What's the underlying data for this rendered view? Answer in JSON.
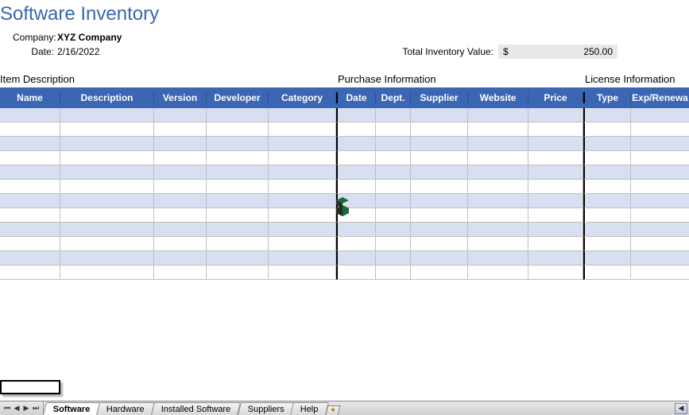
{
  "title": "Software Inventory",
  "meta": {
    "company_label": "Company:",
    "company_value": "XYZ Company",
    "date_label": "Date:",
    "date_value": "2/16/2022"
  },
  "inventory_total": {
    "label": "Total Inventory Value:",
    "currency": "$",
    "amount": "250.00"
  },
  "sections": {
    "item_description": "Item Description",
    "purchase_info": "Purchase Information",
    "license_info": "License Information"
  },
  "columns": {
    "name": "Name",
    "description": "Description",
    "version": "Version",
    "developer": "Developer",
    "category": "Category",
    "date": "Date",
    "dept": "Dept.",
    "supplier": "Supplier",
    "website": "Website",
    "price": "Price",
    "type": "Type",
    "exp": "Exp/Renewa"
  },
  "rows_count": 12,
  "tabs": {
    "items": [
      "Software",
      "Hardware",
      "Installed Software",
      "Suppliers",
      "Help"
    ],
    "active_index": 0
  },
  "colors": {
    "title": "#3a66b3",
    "header_bg": "#3a66b3",
    "alt_row": "#d7dff0",
    "grid": "#c0c0c0"
  }
}
